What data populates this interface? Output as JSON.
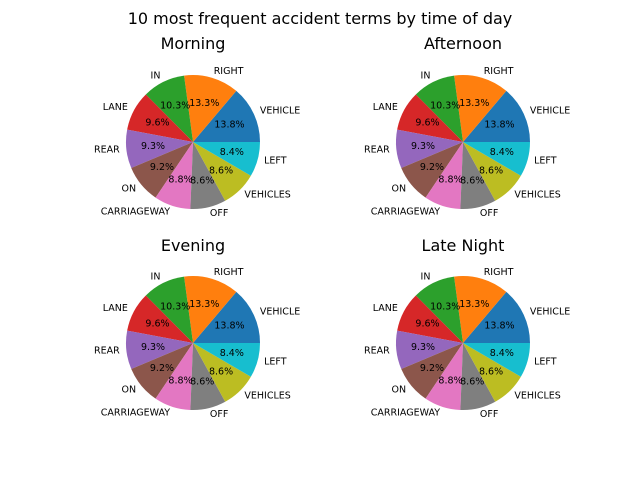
{
  "figure": {
    "suptitle": "10 most frequent accident terms by time of day"
  },
  "colors": [
    "#1f77b4",
    "#ff7f0e",
    "#2ca02c",
    "#d62728",
    "#9467bd",
    "#8c564b",
    "#e377c2",
    "#7f7f7f",
    "#bcbd22",
    "#17becf"
  ],
  "chart_data": [
    {
      "type": "pie",
      "title": "Morning",
      "labels": [
        "VEHICLE",
        "RIGHT",
        "IN",
        "LANE",
        "REAR",
        "ON",
        "CARRIAGEWAY",
        "OFF",
        "VEHICLES",
        "LEFT"
      ],
      "values": [
        13.8,
        13.3,
        10.3,
        9.6,
        9.3,
        9.2,
        8.8,
        8.6,
        8.6,
        8.4
      ],
      "pct_labels": [
        "13.8%",
        "13.3%",
        "10.3%",
        "9.6%",
        "9.3%",
        "9.2%",
        "8.8%",
        "8.6%",
        "8.6%",
        "8.4%"
      ],
      "start_angle_deg": 0,
      "direction": "counterclockwise"
    },
    {
      "type": "pie",
      "title": "Afternoon",
      "labels": [
        "VEHICLE",
        "RIGHT",
        "IN",
        "LANE",
        "REAR",
        "ON",
        "CARRIAGEWAY",
        "OFF",
        "VEHICLES",
        "LEFT"
      ],
      "values": [
        13.8,
        13.3,
        10.3,
        9.6,
        9.3,
        9.2,
        8.8,
        8.6,
        8.6,
        8.4
      ],
      "pct_labels": [
        "13.8%",
        "13.3%",
        "10.3%",
        "9.6%",
        "9.3%",
        "9.2%",
        "8.8%",
        "8.6%",
        "8.6%",
        "8.4%"
      ],
      "start_angle_deg": 0,
      "direction": "counterclockwise"
    },
    {
      "type": "pie",
      "title": "Evening",
      "labels": [
        "VEHICLE",
        "RIGHT",
        "IN",
        "LANE",
        "REAR",
        "ON",
        "CARRIAGEWAY",
        "OFF",
        "VEHICLES",
        "LEFT"
      ],
      "values": [
        13.8,
        13.3,
        10.3,
        9.6,
        9.3,
        9.2,
        8.8,
        8.6,
        8.6,
        8.4
      ],
      "pct_labels": [
        "13.8%",
        "13.3%",
        "10.3%",
        "9.6%",
        "9.3%",
        "9.2%",
        "8.8%",
        "8.6%",
        "8.6%",
        "8.4%"
      ],
      "start_angle_deg": 0,
      "direction": "counterclockwise"
    },
    {
      "type": "pie",
      "title": "Late Night",
      "labels": [
        "VEHICLE",
        "RIGHT",
        "IN",
        "LANE",
        "REAR",
        "ON",
        "CARRIAGEWAY",
        "OFF",
        "VEHICLES",
        "LEFT"
      ],
      "values": [
        13.8,
        13.3,
        10.3,
        9.6,
        9.3,
        9.2,
        8.8,
        8.6,
        8.6,
        8.4
      ],
      "pct_labels": [
        "13.8%",
        "13.3%",
        "10.3%",
        "9.6%",
        "9.3%",
        "9.2%",
        "8.8%",
        "8.6%",
        "8.6%",
        "8.4%"
      ],
      "start_angle_deg": 0,
      "direction": "counterclockwise"
    }
  ]
}
